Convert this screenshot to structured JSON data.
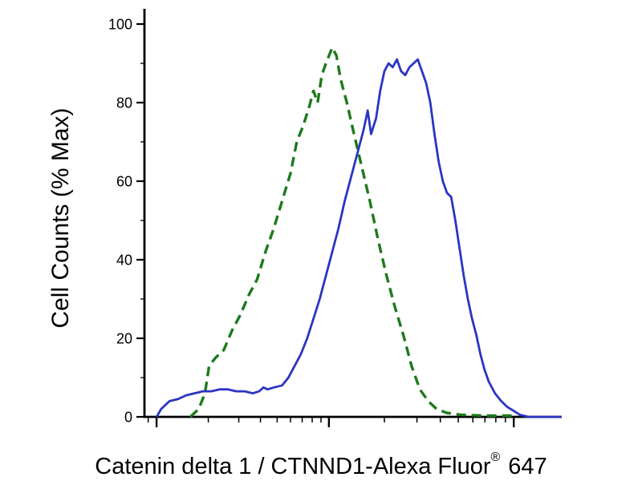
{
  "figure": {
    "background": "#ffffff",
    "ylabel": "Cell Counts (% Max)",
    "xlabel_main": "Catenin delta 1 / CTNND1-Alexa Fluor",
    "xlabel_sup": "®",
    "xlabel_suffix": " 647"
  },
  "chart_data": {
    "type": "line",
    "title": "",
    "subtitle": "",
    "xlabel": "Catenin delta 1 / CTNND1-Alexa Fluor® 647",
    "ylabel": "Cell Counts (% Max)",
    "grid": false,
    "legend": "none",
    "y_axis": {
      "range": [
        0,
        105
      ],
      "major_ticks": [
        0,
        20,
        40,
        60,
        80,
        100
      ],
      "minor_ticks": [
        10,
        30,
        50,
        70,
        90
      ],
      "tick_labels": [
        "0",
        "20",
        "40",
        "60",
        "80",
        "100"
      ]
    },
    "x_axis": {
      "scale": "log",
      "range_percent": [
        0,
        100
      ],
      "tick_labels": [],
      "major_ticks_percent": [
        2.9,
        44.2,
        88.5
      ],
      "minor_ticks_percent": [
        0.9,
        15.3,
        22.6,
        27.8,
        31.8,
        35.0,
        37.8,
        40.2,
        42.3,
        57.5,
        65.3,
        70.9,
        75.2,
        78.7,
        81.6,
        84.2,
        86.5
      ]
    },
    "series": [
      {
        "name": "green-dashed-series",
        "style": "dashed",
        "color": "#1d7a1d",
        "width": 3.4,
        "dash": "12 7",
        "points": [
          [
            11,
            0
          ],
          [
            13,
            2
          ],
          [
            14.5,
            6
          ],
          [
            15.5,
            13
          ],
          [
            17,
            15
          ],
          [
            19,
            17
          ],
          [
            21,
            22
          ],
          [
            23,
            26
          ],
          [
            25,
            31
          ],
          [
            27,
            35
          ],
          [
            29,
            42
          ],
          [
            31,
            48
          ],
          [
            33,
            55
          ],
          [
            35,
            62
          ],
          [
            36.5,
            70
          ],
          [
            38,
            74
          ],
          [
            39.5,
            79
          ],
          [
            40.5,
            83
          ],
          [
            41.5,
            80
          ],
          [
            42.5,
            87
          ],
          [
            43.5,
            90
          ],
          [
            45,
            94
          ],
          [
            46,
            92
          ],
          [
            47,
            86
          ],
          [
            48.5,
            80
          ],
          [
            50,
            73
          ],
          [
            52,
            64
          ],
          [
            54,
            55
          ],
          [
            56,
            45
          ],
          [
            58,
            36
          ],
          [
            60,
            28
          ],
          [
            62,
            21
          ],
          [
            64,
            13
          ],
          [
            66,
            7
          ],
          [
            68,
            4
          ],
          [
            70,
            2
          ],
          [
            72.5,
            1
          ],
          [
            76,
            0.5
          ],
          [
            82,
            0.3
          ],
          [
            88,
            0.3
          ]
        ]
      },
      {
        "name": "blue-solid-series",
        "style": "solid",
        "color": "#2a35c2",
        "width": 2.8,
        "dash": "",
        "points": [
          [
            2.9,
            0
          ],
          [
            4,
            2
          ],
          [
            6,
            4
          ],
          [
            8,
            4.5
          ],
          [
            10,
            5.5
          ],
          [
            12,
            6
          ],
          [
            14,
            6.5
          ],
          [
            16,
            6.5
          ],
          [
            18,
            7
          ],
          [
            20,
            7
          ],
          [
            22,
            6.5
          ],
          [
            24,
            6.5
          ],
          [
            26,
            6
          ],
          [
            27.5,
            6.5
          ],
          [
            28.5,
            7.5
          ],
          [
            29.5,
            7
          ],
          [
            31,
            7.5
          ],
          [
            33,
            8
          ],
          [
            34.5,
            10
          ],
          [
            36,
            13
          ],
          [
            37.5,
            16
          ],
          [
            39,
            20
          ],
          [
            40.5,
            25
          ],
          [
            42,
            30
          ],
          [
            43.5,
            36
          ],
          [
            45,
            42
          ],
          [
            46.5,
            48
          ],
          [
            48,
            55
          ],
          [
            49.5,
            61
          ],
          [
            51,
            67
          ],
          [
            52.5,
            73
          ],
          [
            53.5,
            78
          ],
          [
            54.3,
            72
          ],
          [
            55.5,
            76
          ],
          [
            56.5,
            83
          ],
          [
            57.5,
            88
          ],
          [
            58.5,
            90
          ],
          [
            59.5,
            89
          ],
          [
            60.5,
            91
          ],
          [
            61.5,
            88
          ],
          [
            62.5,
            87
          ],
          [
            63.5,
            89
          ],
          [
            64.5,
            90
          ],
          [
            65.5,
            91
          ],
          [
            66.5,
            88
          ],
          [
            67.5,
            85
          ],
          [
            68.5,
            80
          ],
          [
            69.5,
            72
          ],
          [
            70.5,
            65
          ],
          [
            71.5,
            60
          ],
          [
            72.5,
            57
          ],
          [
            73.5,
            56
          ],
          [
            74.5,
            50
          ],
          [
            75.5,
            43
          ],
          [
            76.5,
            36
          ],
          [
            77.5,
            30
          ],
          [
            78.5,
            25
          ],
          [
            79.5,
            21
          ],
          [
            80.5,
            16
          ],
          [
            81.5,
            12
          ],
          [
            82.5,
            9
          ],
          [
            84,
            6
          ],
          [
            85.5,
            4
          ],
          [
            87,
            2.5
          ],
          [
            88.5,
            1.5
          ],
          [
            90,
            0.5
          ],
          [
            92,
            0
          ],
          [
            100,
            0
          ]
        ]
      }
    ]
  }
}
